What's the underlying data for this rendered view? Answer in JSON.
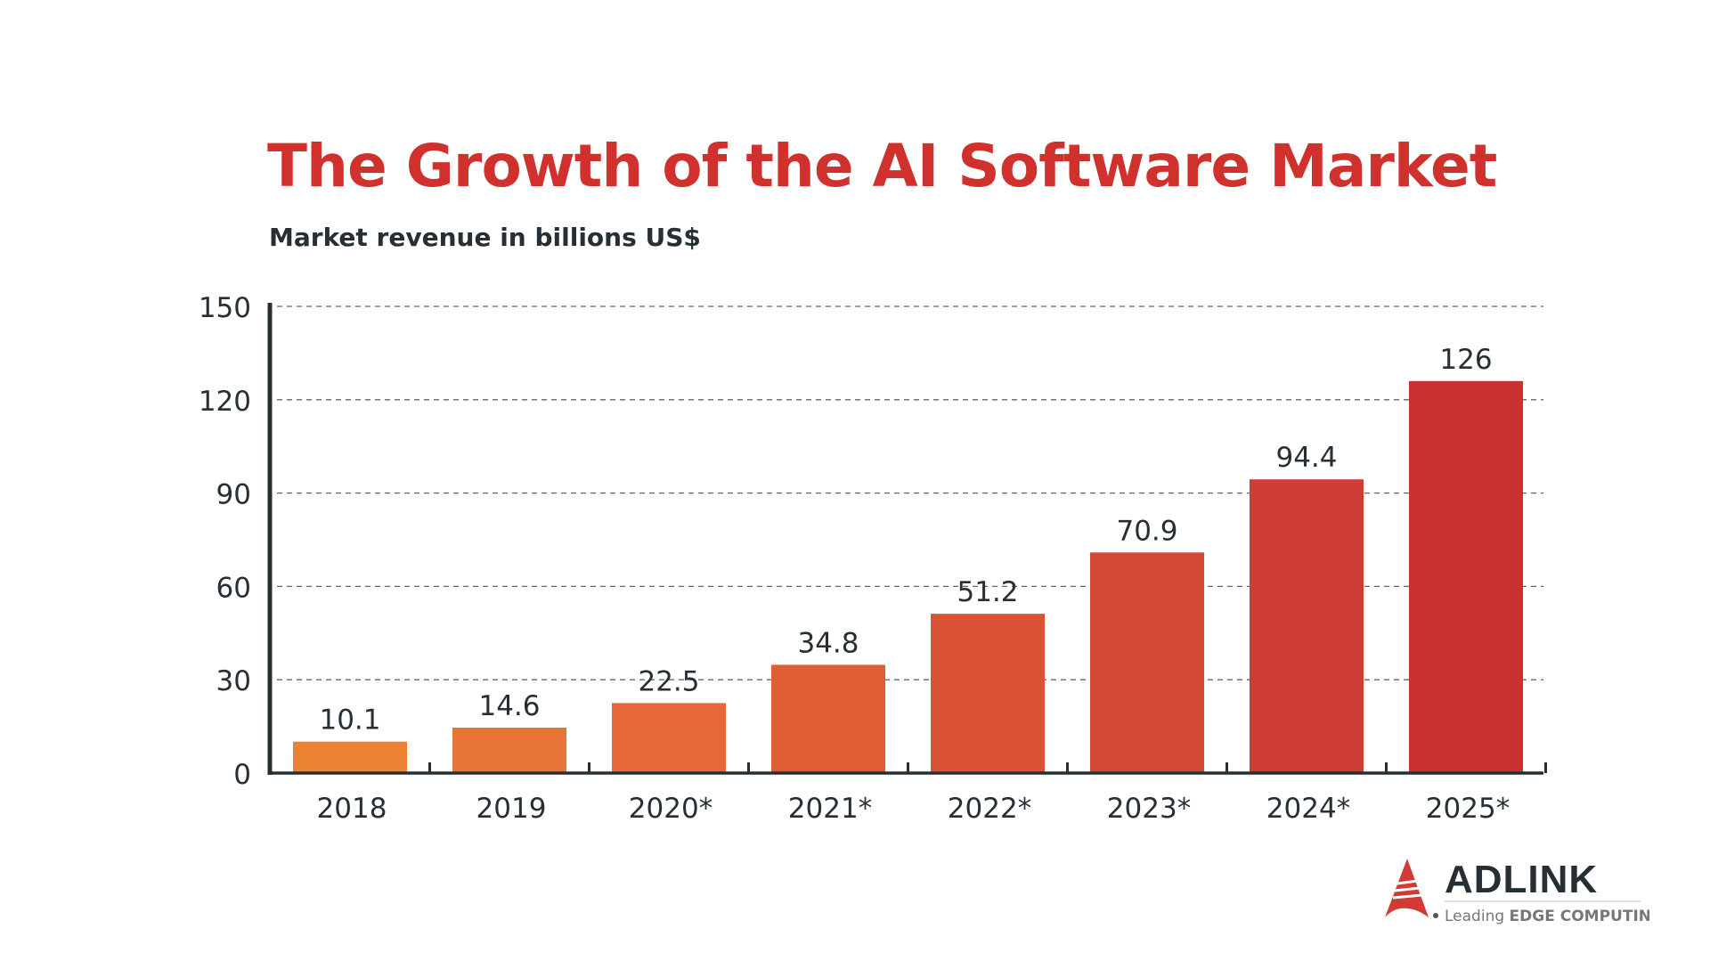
{
  "chart_data": {
    "type": "bar",
    "title": "The Growth of the AI Software Market",
    "subtitle": "Market revenue in billions US$",
    "xlabel": "",
    "ylabel": "",
    "categories": [
      "2018",
      "2019",
      "2020*",
      "2021*",
      "2022*",
      "2023*",
      "2024*",
      "2025*"
    ],
    "values": [
      10.1,
      14.6,
      22.5,
      34.8,
      51.2,
      70.9,
      94.4,
      126
    ],
    "value_labels": [
      "10.1",
      "14.6",
      "22.5",
      "34.8",
      "51.2",
      "70.9",
      "94.4",
      "126"
    ],
    "ylim": [
      0,
      150
    ],
    "yticks": [
      0,
      30,
      60,
      90,
      120,
      150
    ],
    "grid": "horizontal dashed",
    "legend": "none",
    "bar_colors": [
      "#EC8035",
      "#E87538",
      "#E46838",
      "#E05E36",
      "#DA5335",
      "#D44836",
      "#CF3C35",
      "#CB3033"
    ]
  },
  "colors": {
    "title": "#D0312D",
    "text": "#263034",
    "axis": "#263034",
    "grid": "#666666"
  },
  "logo": {
    "name": "ADLINK",
    "tagline_light": "Leading",
    "tagline_bold": "EDGE COMPUTING"
  }
}
